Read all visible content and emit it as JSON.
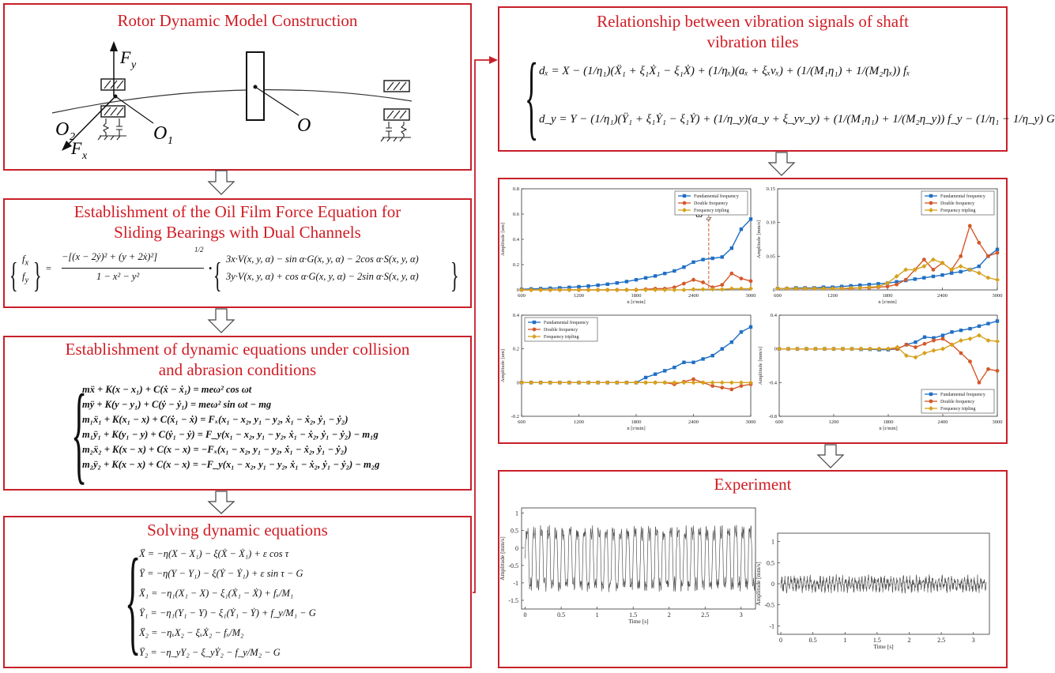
{
  "colors": {
    "border": "#c8202a",
    "title": "#d01c24",
    "fundamental": "#1f6fc4",
    "double": "#d4582a",
    "tripling": "#d6a11e"
  },
  "boxes": {
    "rotor": {
      "title": "Rotor Dynamic Model Construction",
      "labels": {
        "fy": "F",
        "fy_sub": "y",
        "fx": "F",
        "fx_sub": "x",
        "o2": "O",
        "o2_sub": "2",
        "o1": "O",
        "o1_sub": "1",
        "o": "O"
      }
    },
    "oil_film": {
      "title_line1": "Establishment of the Oil Film Force Equation for",
      "title_line2": "Sliding Bearings with Dual Channels",
      "lhs_top": "f",
      "lhs_top_sub": "x",
      "lhs_bottom": "f",
      "lhs_bottom_sub": "y",
      "numerator": "−[(x − 2ẏ)² + (y + 2ẋ)²]",
      "exponent": "1/2",
      "denominator": "1 − x² − y²",
      "rhs_top": "3x·V(x, y, α) − sin α·G(x, y, α) − 2cos α·S(x, y, α)",
      "rhs_bottom": "3y·V(x, y, α) + cos α·G(x, y, α) − 2sin α·S(x, y, α)"
    },
    "collision": {
      "title_line1": "Establishment of dynamic equations under collision",
      "title_line2": "and abrasion conditions",
      "equations": [
        "mẍ + K(x − x₁) + C(ẋ − ẋ₁) = meω² cos ωt",
        "mÿ + K(y − y₁) + C(ẏ − ẏ₁) = meω² sin ωt − mg",
        "m₁ẍ₁ + K(x₁ − x) + C(ẋ₁ − ẋ) = Fₓ(x₁ − x₂, y₁ − y₂, ẋ₁ − ẋ₂, ẏ₁ − ẏ₂)",
        "m₁ÿ₁ + K(y₁ − y) + C(ẏ₁ − ẏ) = F_y(x₁ − x₂, y₁ − y₂, ẋ₁ − ẋ₂, ẏ₁ − ẏ₂) − m₁g",
        "m₂ẍ₂ + K(x − x) + C(x − x) = −Fₓ(x₁ − x₂, y₁ − y₂, ẋ₁ − ẋ₂, ẏ₁ − ẏ₂)",
        "m₂ÿ₂ + K(x − x) + C(x − x) = −F_y(x₁ − x₂, y₁ − y₂, ẋ₁ − ẋ₂, ẏ₁ − ẏ₂) − m₂g"
      ]
    },
    "solving": {
      "title": "Solving dynamic equations",
      "equations": [
        "Ẍ = −η(X − X₁) − ξ(Ẋ − Ẋ₁) + ε cos τ",
        "Ÿ = −η(Y − Y₁) − ξ(Ẏ − Ẏ₁) + ε sin τ − G",
        "Ẍ₁ = −η₁(X₁ − X) − ξ₁(Ẋ₁ − Ẋ) + fₓ/M₁",
        "Ÿ₁ = −η₁(Y₁ − Y) − ξ₁(Ẏ₁ − Ẏ) + f_y/M₁ − G",
        "Ẍ₂ = −ηₓX₂ − ξₓẊ₂ − fₓ/M₂",
        "Ÿ₂ = −η_yY₂ − ξ_yẎ₂ − f_y/M₂ − G"
      ]
    },
    "relationship": {
      "title_line1": "Relationship between vibration signals of shaft",
      "title_line2": "vibration tiles",
      "eq1": "dₓ = X − (1/η₁)(Ẍ₁ + ξ₁Ẋ₁ − ξ₁Ẋ) + (1/ηₓ)(aₓ + ξₓvₓ) + (1/(M₁η₁) + 1/(M₂ηₓ)) fₓ",
      "eq2": "d_y = Y − (1/η₁)(Ÿ₁ + ξ₁Ẏ₁ − ξ₁Ẏ) + (1/η_y)(a_y + ξ_yv_y) + (1/(M₁η₁) + 1/(M₂η_y)) f_y − (1/η₁ − 1/η_y) G"
    },
    "experiment": {
      "title": "Experiment"
    }
  },
  "chart_data": [
    {
      "type": "line",
      "xlabel": "n [r/min]",
      "ylabel": "Amplitude [um]",
      "xlim": [
        600,
        3000
      ],
      "ylim": [
        0,
        0.8
      ],
      "xticks": [
        "600",
        "1200",
        "1800",
        "2400",
        "3000"
      ],
      "yticks": [
        "0",
        "0.2",
        "0.4",
        "0.6",
        "0.8"
      ],
      "annotation": "ω",
      "annotation_sub": "cr",
      "annotation_x": 2560,
      "legend": "top-right",
      "x": [
        600,
        700,
        800,
        900,
        1000,
        1100,
        1200,
        1300,
        1400,
        1500,
        1600,
        1700,
        1800,
        1900,
        2000,
        2100,
        2200,
        2300,
        2400,
        2500,
        2600,
        2700,
        2800,
        2900,
        3000
      ],
      "series": [
        {
          "name": "Fundamental frequency",
          "values": [
            0.005,
            0.008,
            0.01,
            0.013,
            0.016,
            0.02,
            0.025,
            0.03,
            0.037,
            0.045,
            0.055,
            0.066,
            0.08,
            0.095,
            0.11,
            0.13,
            0.15,
            0.18,
            0.22,
            0.24,
            0.25,
            0.26,
            0.33,
            0.48,
            0.56
          ]
        },
        {
          "name": "Double frequency",
          "values": [
            0,
            0,
            0,
            0,
            0,
            0,
            0,
            0,
            0,
            0,
            0,
            0,
            0,
            0.005,
            0.01,
            0.01,
            0.02,
            0.05,
            0.08,
            0.06,
            0.02,
            0.04,
            0.13,
            0.09,
            0.07
          ]
        },
        {
          "name": "Frequency tripling",
          "values": [
            0,
            0,
            0,
            0,
            0,
            0,
            0,
            0,
            0,
            0,
            0,
            0,
            0,
            0,
            0,
            0,
            0,
            0,
            0.005,
            0.005,
            0.005,
            0.005,
            0.01,
            0.01,
            0.01
          ]
        }
      ]
    },
    {
      "type": "line",
      "xlabel": "n [r/min]",
      "ylabel": "Amplitude [mm/s]",
      "xlim": [
        600,
        3000
      ],
      "ylim": [
        0,
        0.15
      ],
      "xticks": [
        "600",
        "1200",
        "1800",
        "2400",
        "3000"
      ],
      "yticks": [
        "0",
        "0.05",
        "0.10",
        "0.15"
      ],
      "legend": "top-right",
      "x": [
        600,
        700,
        800,
        900,
        1000,
        1100,
        1200,
        1300,
        1400,
        1500,
        1600,
        1700,
        1800,
        1900,
        2000,
        2100,
        2200,
        2300,
        2400,
        2500,
        2600,
        2700,
        2800,
        2900,
        3000
      ],
      "series": [
        {
          "name": "Fundamental frequency",
          "values": [
            0.002,
            0.002,
            0.003,
            0.003,
            0.003,
            0.004,
            0.004,
            0.005,
            0.006,
            0.007,
            0.008,
            0.009,
            0.01,
            0.012,
            0.014,
            0.016,
            0.018,
            0.02,
            0.022,
            0.025,
            0.027,
            0.03,
            0.035,
            0.05,
            0.06
          ]
        },
        {
          "name": "Double frequency",
          "values": [
            0.002,
            0.002,
            0.002,
            0.002,
            0.002,
            0.002,
            0.002,
            0.002,
            0.002,
            0.003,
            0.003,
            0.004,
            0.005,
            0.008,
            0.015,
            0.03,
            0.045,
            0.03,
            0.04,
            0.03,
            0.05,
            0.095,
            0.07,
            0.05,
            0.055
          ]
        },
        {
          "name": "Frequency tripling",
          "values": [
            0.002,
            0.002,
            0.002,
            0.002,
            0.002,
            0.002,
            0.002,
            0.002,
            0.003,
            0.003,
            0.004,
            0.005,
            0.01,
            0.02,
            0.03,
            0.03,
            0.035,
            0.045,
            0.04,
            0.03,
            0.035,
            0.03,
            0.025,
            0.018,
            0.015
          ]
        }
      ]
    },
    {
      "type": "line",
      "xlabel": "n [r/min]",
      "ylabel": "Amplitude [um]",
      "xlim": [
        600,
        3000
      ],
      "ylim": [
        -0.2,
        0.4
      ],
      "xticks": [
        "600",
        "1200",
        "1800",
        "2400",
        "3000"
      ],
      "yticks": [
        "-0.2",
        "0",
        "0.2",
        "0.4"
      ],
      "legend": "top-left",
      "x": [
        600,
        700,
        800,
        900,
        1000,
        1100,
        1200,
        1300,
        1400,
        1500,
        1600,
        1700,
        1800,
        1900,
        2000,
        2100,
        2200,
        2300,
        2400,
        2500,
        2600,
        2700,
        2800,
        2900,
        3000
      ],
      "series": [
        {
          "name": "Fundamental frequency",
          "values": [
            0,
            0,
            0,
            0,
            0,
            0,
            0,
            0,
            0,
            0,
            0,
            0,
            0,
            0.03,
            0.05,
            0.07,
            0.09,
            0.12,
            0.12,
            0.14,
            0.16,
            0.2,
            0.24,
            0.3,
            0.33
          ]
        },
        {
          "name": "Double frequency",
          "values": [
            0,
            0,
            0,
            0,
            0,
            0,
            0,
            0,
            0,
            0,
            0,
            0,
            0,
            0,
            0,
            0,
            -0.01,
            0.005,
            0.02,
            0,
            -0.02,
            -0.03,
            -0.04,
            -0.02,
            -0.01
          ]
        },
        {
          "name": "Frequency tripling",
          "values": [
            0,
            0,
            0,
            0,
            0,
            0,
            0,
            0,
            0,
            0,
            0,
            0,
            0,
            0,
            0,
            0,
            0,
            0,
            0,
            0,
            0,
            0,
            0,
            0,
            0
          ]
        }
      ]
    },
    {
      "type": "line",
      "xlabel": "n [r/min]",
      "ylabel": "Amplitude [mm/s]",
      "xlim": [
        600,
        3000
      ],
      "ylim": [
        -0.8,
        0.4
      ],
      "xticks": [
        "600",
        "1200",
        "1800",
        "2400",
        "3000"
      ],
      "yticks": [
        "-0.8",
        "-0.4",
        "0",
        "0.4"
      ],
      "legend": "bottom-right",
      "x": [
        600,
        700,
        800,
        900,
        1000,
        1100,
        1200,
        1300,
        1400,
        1500,
        1600,
        1700,
        1800,
        1900,
        2000,
        2100,
        2200,
        2300,
        2400,
        2500,
        2600,
        2700,
        2800,
        2900,
        3000
      ],
      "series": [
        {
          "name": "Fundamental frequency",
          "values": [
            0,
            0,
            0,
            0,
            0,
            0,
            0,
            0,
            0,
            -0.005,
            -0.005,
            -0.01,
            -0.01,
            0,
            0.05,
            0.08,
            0.14,
            0.13,
            0.16,
            0.2,
            0.22,
            0.24,
            0.27,
            0.3,
            0.33
          ]
        },
        {
          "name": "Double frequency",
          "values": [
            0,
            0,
            0,
            0,
            0,
            0,
            0,
            0,
            0,
            0,
            0,
            0,
            0,
            0,
            0.05,
            0.02,
            0.06,
            0.1,
            0.12,
            0.05,
            -0.05,
            -0.15,
            -0.4,
            -0.24,
            -0.26
          ]
        },
        {
          "name": "Frequency tripling",
          "values": [
            0,
            0,
            0,
            0,
            0,
            0,
            0,
            0,
            0,
            0,
            0,
            0,
            0,
            0.02,
            -0.08,
            -0.1,
            -0.05,
            -0.02,
            0,
            0.05,
            0.1,
            0.12,
            0.16,
            0.1,
            0.09
          ]
        }
      ]
    },
    {
      "type": "line",
      "xlabel": "Time [s]",
      "ylabel": "Amplitude [mm/s]",
      "xlim": [
        -0.05,
        3.2
      ],
      "ylim": [
        -1.75,
        1.15
      ],
      "xticks": [
        "0",
        "0.5",
        "1",
        "1.5",
        "2",
        "2.5",
        "3"
      ],
      "yticks": [
        "-1.5",
        "-1",
        "-0.5",
        "0",
        "0.5",
        "1"
      ],
      "signal": {
        "frequency_hz": 10,
        "amplitude": 1.0,
        "offset": -0.3
      }
    },
    {
      "type": "line",
      "xlabel": "Time [s]",
      "ylabel": "Amplitude [mm/s]",
      "xlim": [
        -0.05,
        3.25
      ],
      "ylim": [
        -1.2,
        1.2
      ],
      "xticks": [
        "0",
        "0.5",
        "1",
        "1.5",
        "2",
        "2.5",
        "3"
      ],
      "yticks": [
        "-1",
        "-0.5",
        "0",
        "0.5",
        "1"
      ],
      "signal": {
        "frequency_hz": 20,
        "amplitude": 0.12,
        "offset": 0
      }
    }
  ]
}
